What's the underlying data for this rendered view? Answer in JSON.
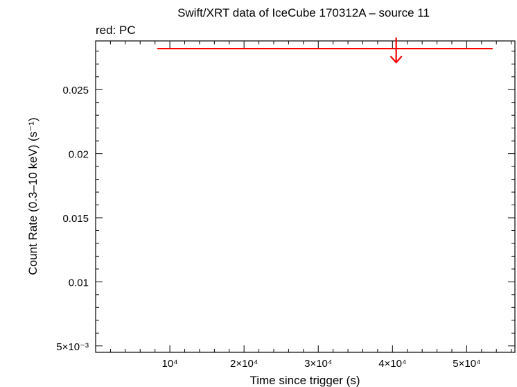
{
  "chart_data": {
    "type": "scatter",
    "title": "Swift/XRT data of IceCube 170312A – source 11",
    "subtitle": "red: PC",
    "xlabel": "Time since trigger (s)",
    "ylabel": "Count Rate (0.3–10 keV) (s⁻¹)",
    "xlim": [
      0,
      56500
    ],
    "ylim": [
      0.0045,
      0.0288
    ],
    "x_ticks": [
      {
        "value": 10000,
        "label": "10⁴"
      },
      {
        "value": 20000,
        "label": "2×10⁴"
      },
      {
        "value": 30000,
        "label": "3×10⁴"
      },
      {
        "value": 40000,
        "label": "4×10⁴"
      },
      {
        "value": 50000,
        "label": "5×10⁴"
      }
    ],
    "y_ticks": [
      {
        "value": 0.005,
        "label": "5×10⁻³"
      },
      {
        "value": 0.01,
        "label": "0.01"
      },
      {
        "value": 0.015,
        "label": "0.015"
      },
      {
        "value": 0.02,
        "label": "0.02"
      },
      {
        "value": 0.025,
        "label": "0.025"
      }
    ],
    "grid": false,
    "series": [
      {
        "color": "#ff0000",
        "points": [
          {
            "x": 40500,
            "x_start": 8300,
            "x_end": 53500,
            "y": 0.0282,
            "upper_limit": true
          }
        ]
      }
    ]
  }
}
